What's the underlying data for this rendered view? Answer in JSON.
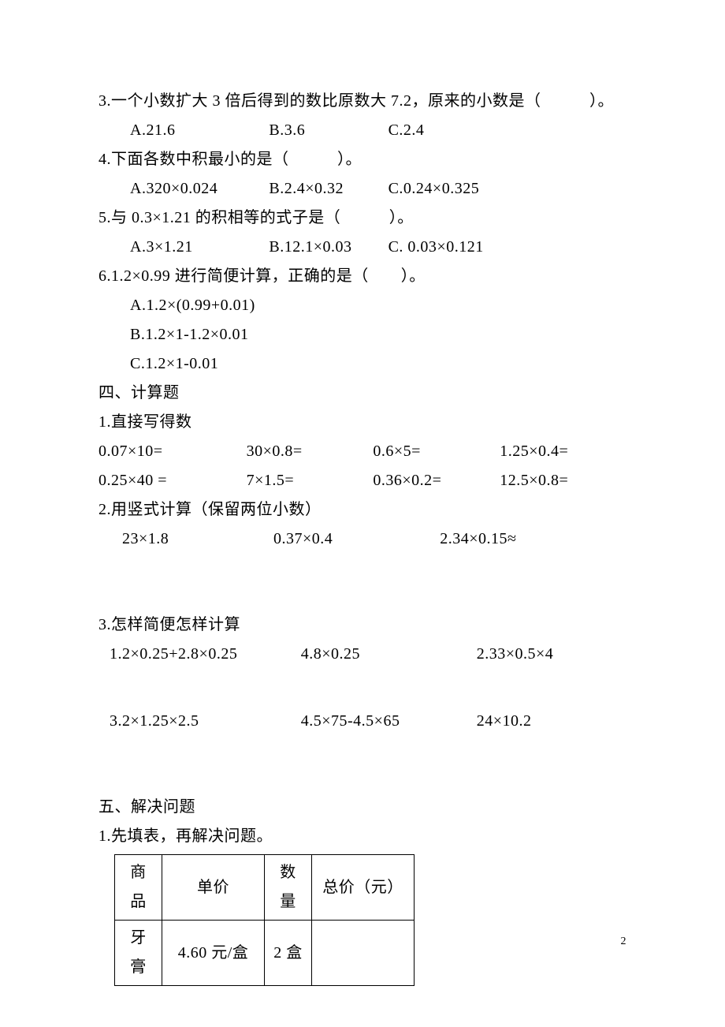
{
  "q3": {
    "text": "3.一个小数扩大 3 倍后得到的数比原数大 7.2，原来的小数是（　　　）。",
    "a": "A.21.6",
    "b": "B.3.6",
    "c": "C.2.4"
  },
  "q4": {
    "text": "4.下面各数中积最小的是（　　　）。",
    "a": "A.320×0.024",
    "b": "B.2.4×0.32",
    "c": "C.0.24×0.325"
  },
  "q5": {
    "text": "5.与 0.3×1.21 的积相等的式子是（　　　）。",
    "a": "A.3×1.21",
    "b": "B.12.1×0.03",
    "c": "C. 0.03×0.121"
  },
  "q6": {
    "text": "6.1.2×0.99 进行简便计算，正确的是（　　）。",
    "a": "A.1.2×(0.99+0.01)",
    "b": "B.1.2×1-1.2×0.01",
    "c": "C.1.2×1-0.01"
  },
  "s4": {
    "title": "四、计算题",
    "p1": {
      "title": "1.直接写得数",
      "r1c1": "0.07×10=",
      "r1c2": "30×0.8=",
      "r1c3": "0.6×5=",
      "r1c4": "1.25×0.4=",
      "r2c1": "0.25×40 =",
      "r2c2": "7×1.5=",
      "r2c3": "0.36×0.2=",
      "r2c4": "12.5×0.8="
    },
    "p2": {
      "title": "2.用竖式计算（保留两位小数）",
      "a": "23×1.8",
      "b": "0.37×0.4",
      "c": "2.34×0.15≈"
    },
    "p3": {
      "title": "3.怎样简便怎样计算",
      "r1a": "1.2×0.25+2.8×0.25",
      "r1b": "4.8×0.25",
      "r1c": "2.33×0.5×4",
      "r2a": "3.2×1.25×2.5",
      "r2b": "4.5×75-4.5×65",
      "r2c": "24×10.2"
    }
  },
  "s5": {
    "title": "五、解决问题",
    "p1": {
      "title": "1.先填表，再解决问题。",
      "headers": [
        "商品",
        "单价",
        "数量",
        "总价（元）"
      ],
      "rows": [
        [
          "牙膏",
          "4.60 元/盒",
          "2 盒",
          ""
        ]
      ]
    }
  },
  "page_num": "2"
}
